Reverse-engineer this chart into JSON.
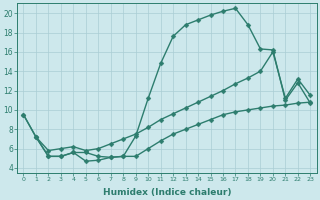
{
  "line_top_x": [
    0,
    1,
    2,
    3,
    4,
    5,
    6,
    7,
    8,
    9,
    10,
    11,
    12,
    13,
    14,
    15,
    16,
    17,
    18,
    19,
    20,
    21,
    22,
    23
  ],
  "line_top_y": [
    9.5,
    7.2,
    5.2,
    5.2,
    5.6,
    5.6,
    5.2,
    5.1,
    5.2,
    7.3,
    11.2,
    14.8,
    17.6,
    18.8,
    19.3,
    19.8,
    20.2,
    20.5,
    18.8,
    16.3,
    16.2,
    11.0,
    12.8,
    10.7
  ],
  "line_mid_x": [
    0,
    1,
    2,
    3,
    4,
    5,
    6,
    7,
    8,
    9,
    10,
    11,
    12,
    13,
    14,
    15,
    16,
    17,
    18,
    19,
    20,
    21,
    22,
    23
  ],
  "line_mid_y": [
    9.5,
    7.2,
    5.8,
    6.0,
    6.2,
    5.8,
    6.0,
    6.5,
    7.0,
    7.5,
    8.2,
    9.0,
    9.6,
    10.2,
    10.8,
    11.4,
    12.0,
    12.7,
    13.3,
    14.0,
    16.0,
    11.2,
    13.2,
    11.5
  ],
  "line_bot_x": [
    1,
    2,
    3,
    4,
    5,
    6,
    7,
    8,
    9,
    10,
    11,
    12,
    13,
    14,
    15,
    16,
    17,
    18,
    19,
    20,
    21,
    22,
    23
  ],
  "line_bot_y": [
    7.2,
    5.2,
    5.2,
    5.6,
    4.7,
    4.8,
    5.1,
    5.2,
    5.2,
    6.0,
    6.8,
    7.5,
    8.0,
    8.5,
    9.0,
    9.5,
    9.8,
    10.0,
    10.2,
    10.4,
    10.5,
    10.7,
    10.8
  ],
  "color": "#2d7d6e",
  "bg_color": "#cde8ec",
  "grid_color": "#aacdd4",
  "xlabel": "Humidex (Indice chaleur)",
  "xlim": [
    -0.5,
    23.5
  ],
  "ylim": [
    3.5,
    21
  ],
  "yticks": [
    4,
    6,
    8,
    10,
    12,
    14,
    16,
    18,
    20
  ],
  "xticks": [
    0,
    1,
    2,
    3,
    4,
    5,
    6,
    7,
    8,
    9,
    10,
    11,
    12,
    13,
    14,
    15,
    16,
    17,
    18,
    19,
    20,
    21,
    22,
    23
  ],
  "markersize": 2.5,
  "linewidth": 1.0
}
